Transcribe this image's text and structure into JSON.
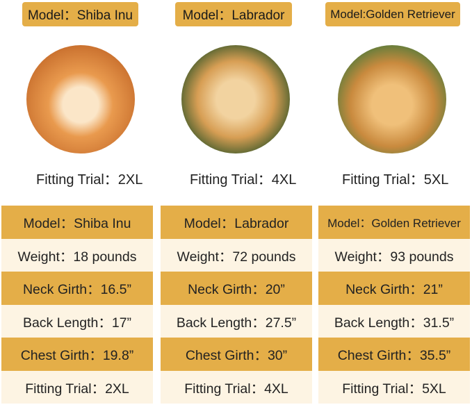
{
  "dogs": [
    {
      "top_label": "Model：Shiba Inu",
      "fit_label": "Fitting Trial：2XL",
      "photo_colors": [
        "#f0a95a",
        "#c9702e",
        "#fbe6c8"
      ],
      "rows": [
        "Model：Shiba Inu",
        "Weight：18 pounds",
        "Neck Girth：16.5”",
        "Back Length：17”",
        "Chest Girth：19.8”",
        "Fitting Trial：2XL"
      ]
    },
    {
      "top_label": "Model：Labrador",
      "fit_label": "Fitting Trial：4XL",
      "photo_colors": [
        "#3e5a2a",
        "#d79e54",
        "#f2d3a0"
      ],
      "rows": [
        "Model：Labrador",
        "Weight：72 pounds",
        "Neck Girth：20”",
        "Back Length：27.5”",
        "Chest Girth：30”",
        "Fitting Trial：4XL"
      ]
    },
    {
      "top_label": "Model:Golden Retriever",
      "fit_label": "Fitting Trial：5XL",
      "photo_colors": [
        "#4f7a3a",
        "#c98a3e",
        "#f0c07a"
      ],
      "rows": [
        "Model：Golden Retriever",
        "Weight：93 pounds",
        "Neck Girth：21”",
        "Back Length：31.5”",
        "Chest Girth：35.5”",
        "Fitting Trial：5XL"
      ]
    }
  ],
  "colors": {
    "gold": "#e4ae48",
    "cream": "#fdf4e3"
  }
}
